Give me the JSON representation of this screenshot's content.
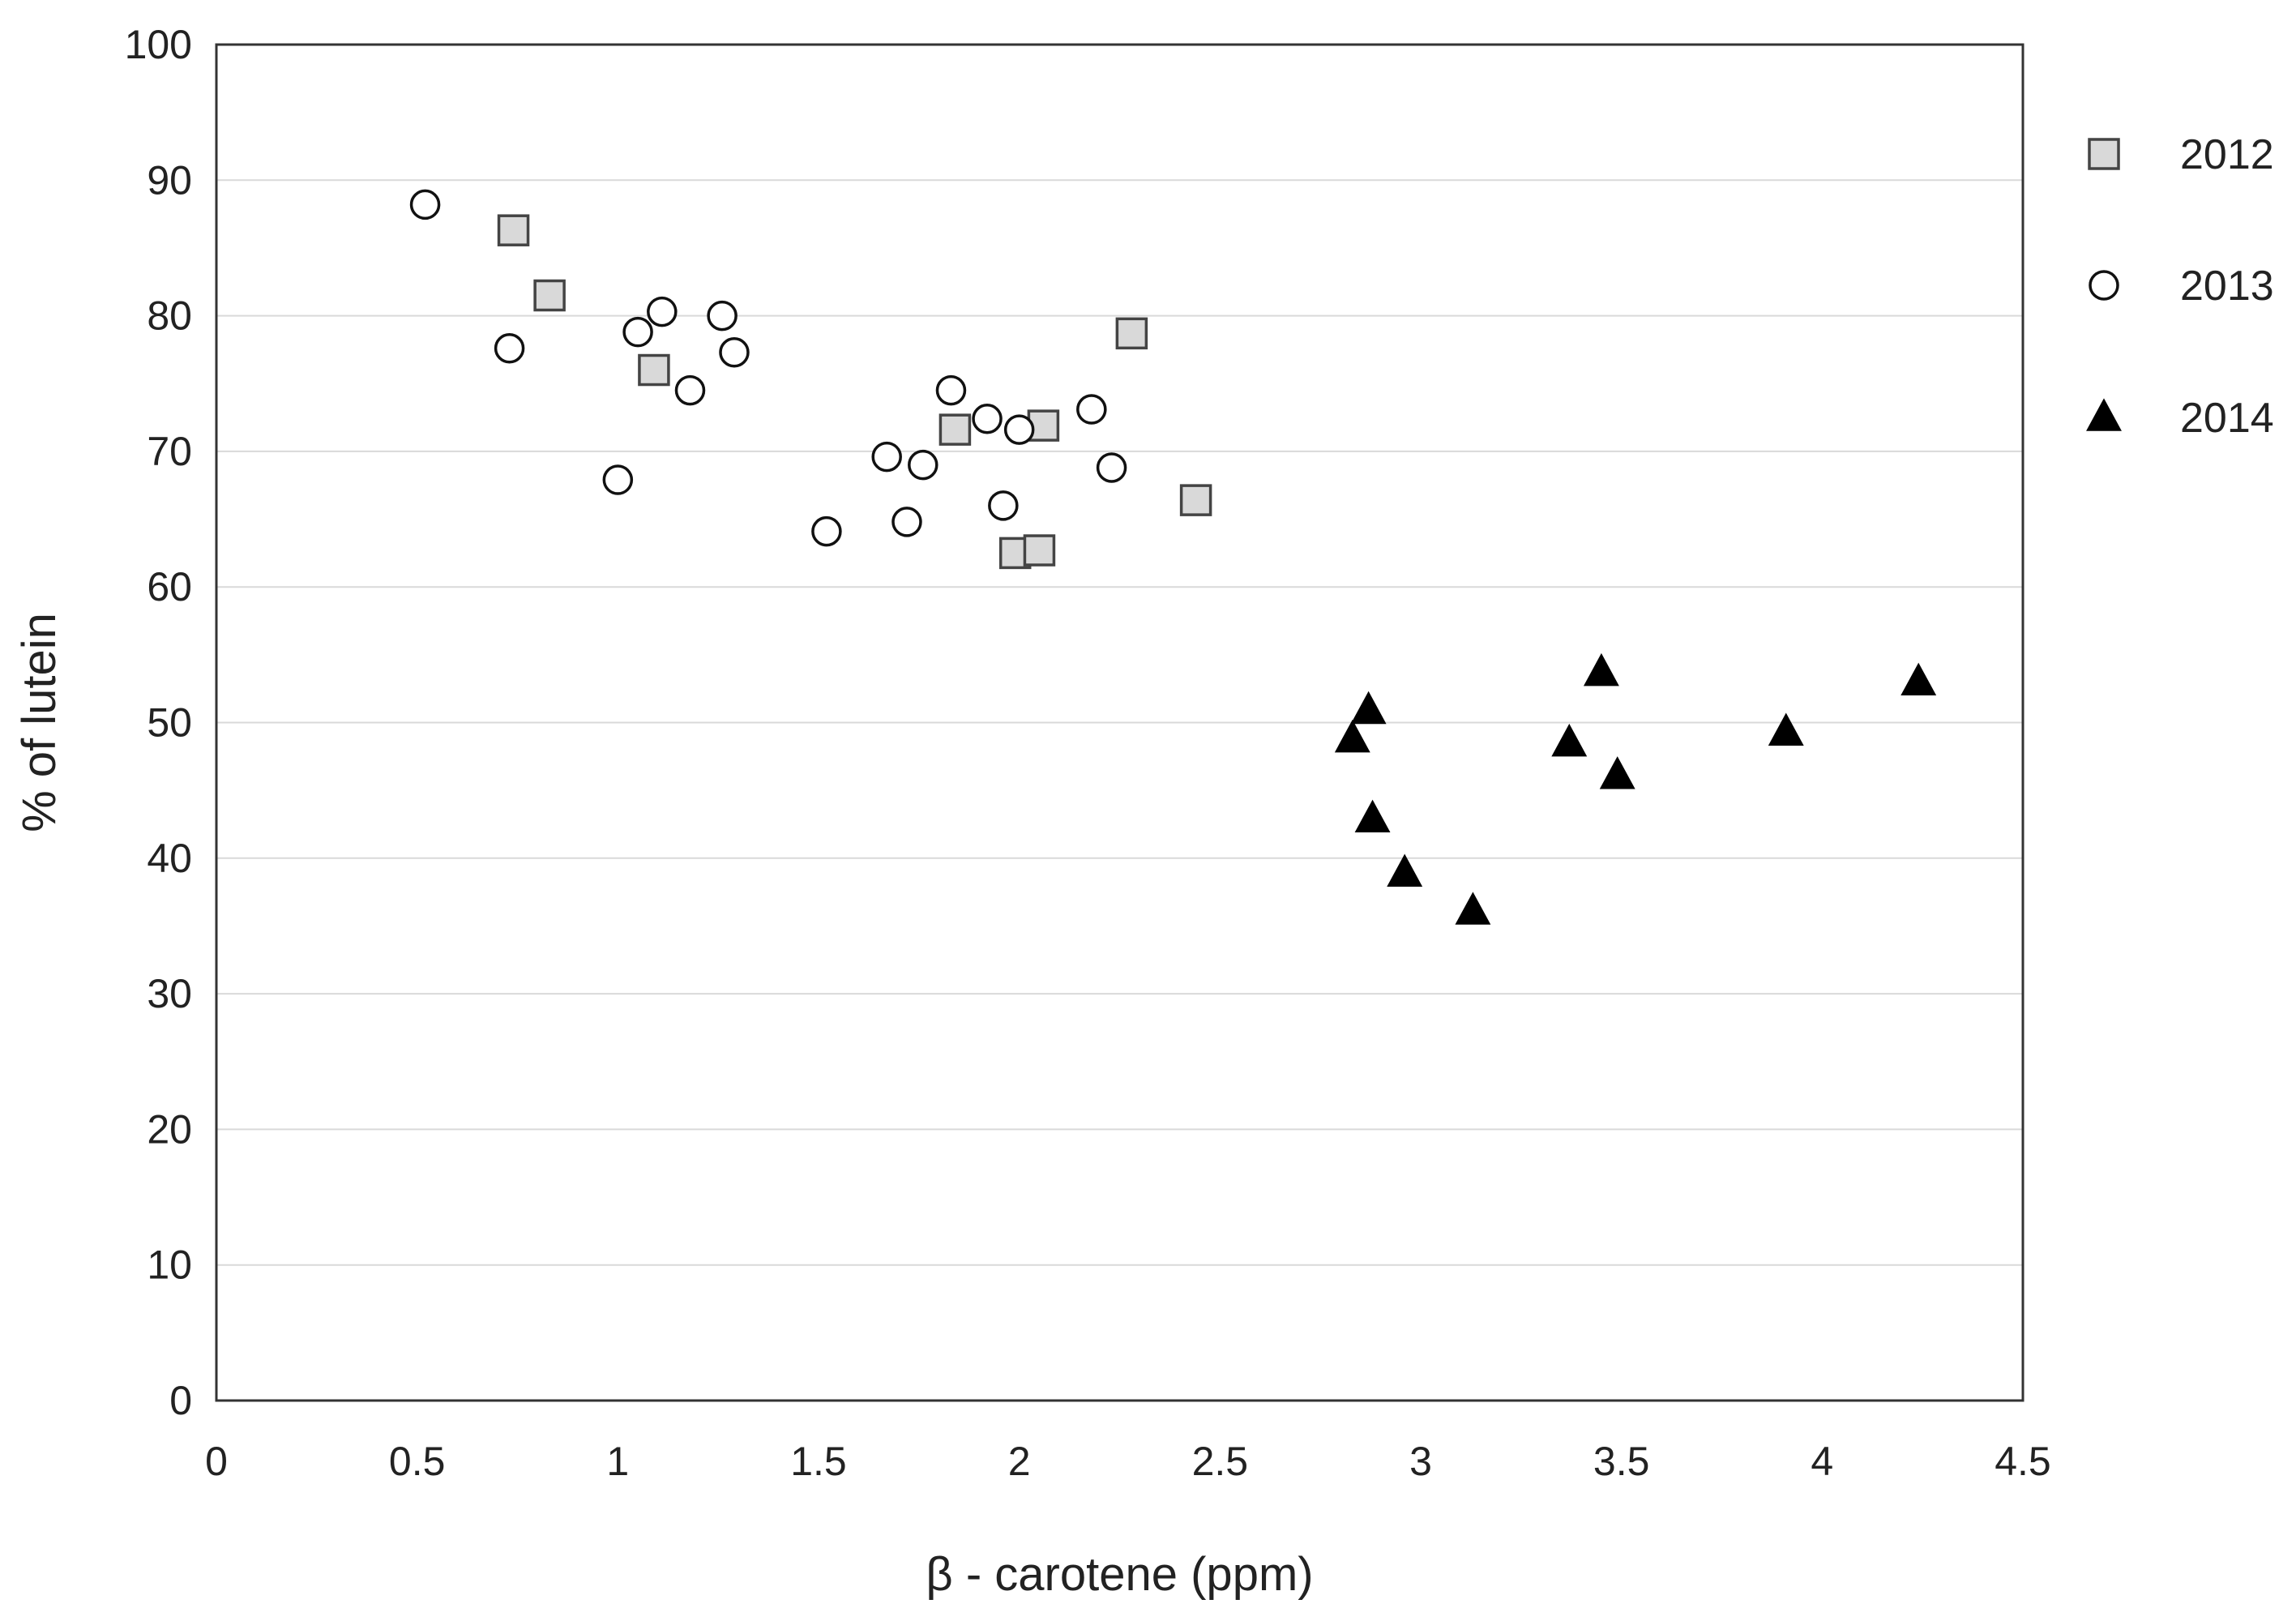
{
  "chart_data": {
    "type": "scatter",
    "title": "",
    "xlabel": "β  - carotene (ppm)",
    "ylabel": "% of lutein",
    "xlim": [
      0,
      4.5
    ],
    "ylim": [
      0,
      100
    ],
    "x_ticks": [
      "0",
      "0.5",
      "1",
      "1.5",
      "2",
      "2.5",
      "3",
      "3.5",
      "4",
      "4.5"
    ],
    "y_ticks": [
      "0",
      "10",
      "20",
      "30",
      "40",
      "50",
      "60",
      "70",
      "80",
      "90",
      "100"
    ],
    "grid": true,
    "legend_position": "right",
    "series": [
      {
        "name": "2012",
        "marker": "square",
        "fill": "#d9d9d9",
        "stroke": "#444444",
        "points": [
          [
            0.74,
            86.3
          ],
          [
            0.83,
            81.5
          ],
          [
            1.09,
            76.0
          ],
          [
            1.84,
            71.6
          ],
          [
            2.06,
            71.9
          ],
          [
            2.28,
            78.7
          ],
          [
            1.99,
            62.5
          ],
          [
            2.05,
            62.7
          ],
          [
            2.44,
            66.4
          ]
        ]
      },
      {
        "name": "2013",
        "marker": "circle",
        "fill": "#ffffff",
        "stroke": "#111111",
        "points": [
          [
            0.52,
            88.2
          ],
          [
            0.73,
            77.6
          ],
          [
            1.0,
            67.9
          ],
          [
            1.05,
            78.8
          ],
          [
            1.11,
            80.3
          ],
          [
            1.18,
            74.5
          ],
          [
            1.26,
            80.0
          ],
          [
            1.29,
            77.3
          ],
          [
            1.52,
            64.1
          ],
          [
            1.67,
            69.6
          ],
          [
            1.72,
            64.8
          ],
          [
            1.76,
            69.0
          ],
          [
            1.83,
            74.5
          ],
          [
            1.92,
            72.4
          ],
          [
            1.96,
            66.0
          ],
          [
            2.0,
            71.6
          ],
          [
            2.18,
            73.1
          ],
          [
            2.23,
            68.8
          ]
        ]
      },
      {
        "name": "2014",
        "marker": "triangle",
        "fill": "#000000",
        "stroke": "#000000",
        "points": [
          [
            2.83,
            48.8
          ],
          [
            2.87,
            50.9
          ],
          [
            2.88,
            42.9
          ],
          [
            2.96,
            38.9
          ],
          [
            3.13,
            36.1
          ],
          [
            3.37,
            48.5
          ],
          [
            3.45,
            53.7
          ],
          [
            3.49,
            46.1
          ],
          [
            3.91,
            49.3
          ],
          [
            4.24,
            53.0
          ]
        ]
      }
    ]
  }
}
